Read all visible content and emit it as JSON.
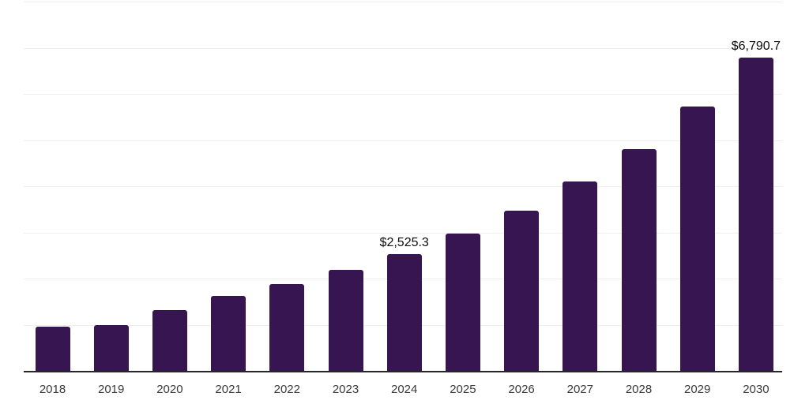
{
  "chart_data": {
    "type": "bar",
    "title": "",
    "xlabel": "",
    "ylabel": "",
    "legend": "none",
    "grid": "horizontal",
    "categories": [
      "2018",
      "2019",
      "2020",
      "2021",
      "2022",
      "2023",
      "2024",
      "2025",
      "2026",
      "2027",
      "2028",
      "2029",
      "2030"
    ],
    "values": [
      950,
      1000,
      1320,
      1630,
      1880,
      2190,
      2525.3,
      2980,
      3470,
      4100,
      4810,
      5720,
      6790.7
    ],
    "annotations": [
      {
        "category": "2024",
        "text": "$2,525.3"
      },
      {
        "category": "2030",
        "text": "$6,790.7"
      }
    ],
    "ylim": [
      0,
      8000
    ],
    "gridline_step": 1000,
    "y_axis_labels_visible": false,
    "colors": {
      "bar": "#371551",
      "axis_line": "#262626",
      "gridline": "#eeeeee",
      "tick_text": "#3a3a3a",
      "value_label_text": "#0d0d0d",
      "background": "#ffffff"
    }
  }
}
